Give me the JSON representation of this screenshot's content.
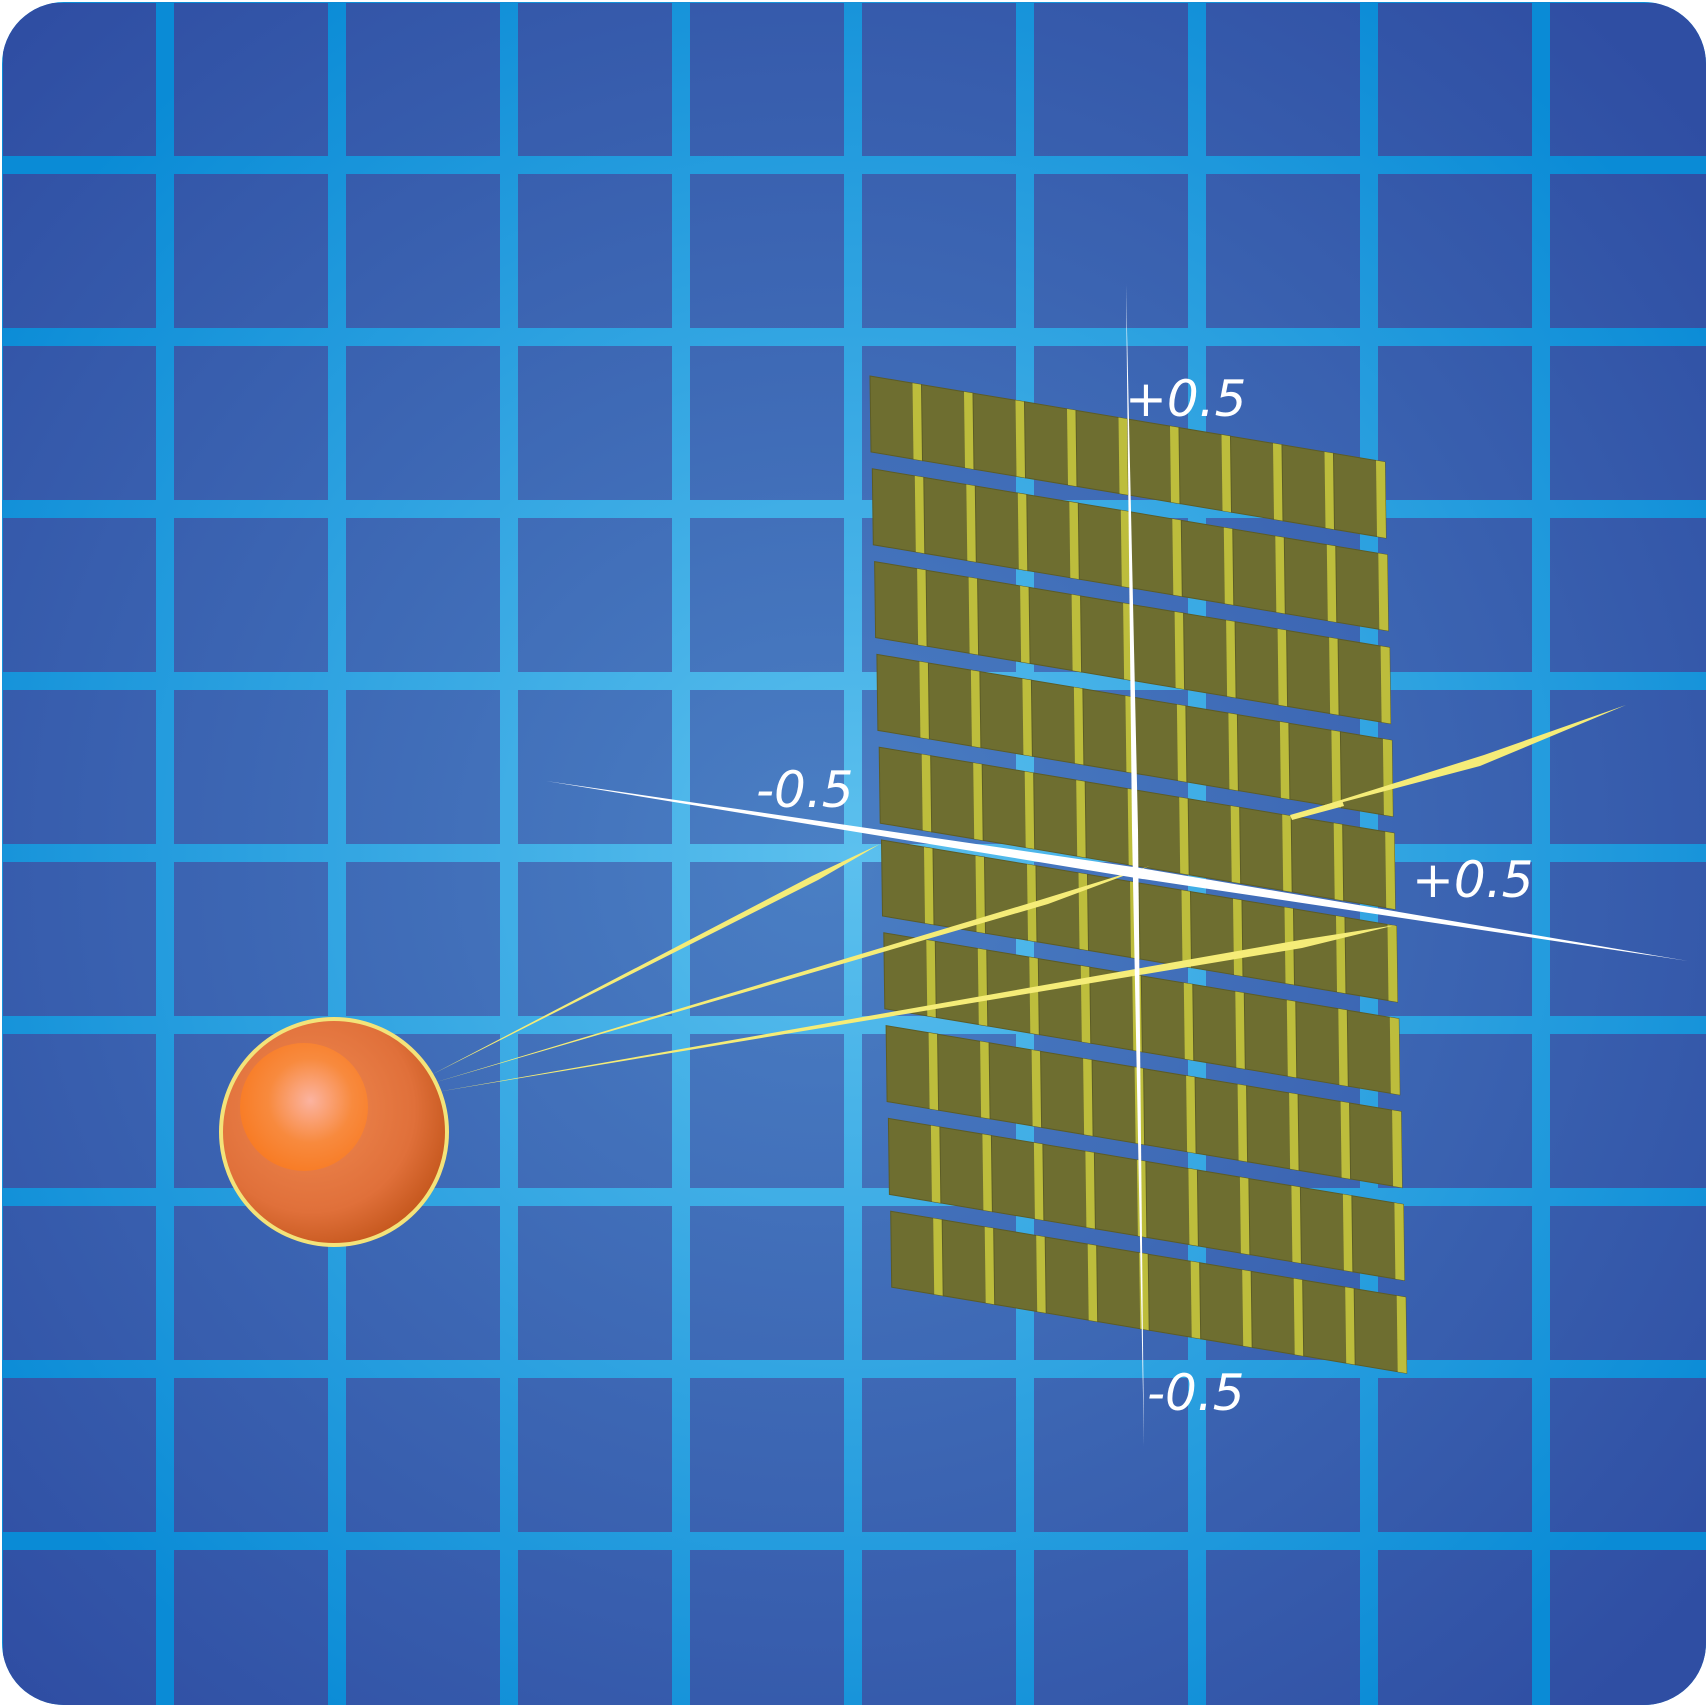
{
  "colors": {
    "background_center": "#4a7fc4",
    "background_edge": "#2f4ea3",
    "grid_line": "#1ea3e3",
    "detector_tile": "#6e6e30",
    "detector_edge": "#bdbd3c",
    "ray": "#f5ec78",
    "axis": "#ffffff",
    "source_fill": "#e2743a",
    "source_highlight": "#ff8a2a",
    "source_outline": "#f3e37a"
  },
  "detector": {
    "rows": 10,
    "columns": 10
  },
  "source": {
    "icon": "point-source-icon"
  },
  "rays": {
    "count": 3
  },
  "labels": {
    "vertical_top": "+0.5",
    "vertical_bottom": "-0.5",
    "horizontal_left": "-0.5",
    "horizontal_right": "+0.5"
  }
}
